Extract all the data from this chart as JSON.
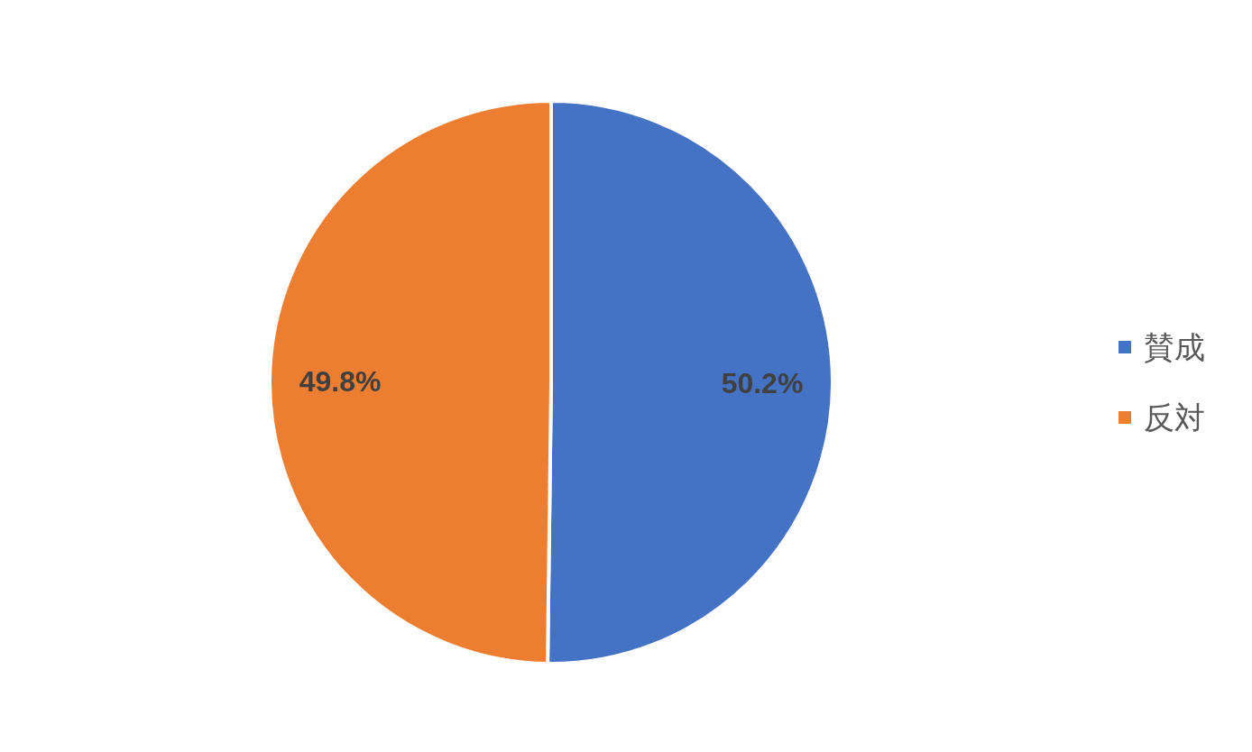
{
  "chart_data": {
    "type": "pie",
    "categories": [
      "賛成",
      "反対"
    ],
    "values": [
      50.2,
      49.8
    ],
    "colors": [
      "#4472c4",
      "#ed7d31"
    ],
    "value_labels": [
      "50.2%",
      "49.8%"
    ],
    "legend": "right"
  }
}
